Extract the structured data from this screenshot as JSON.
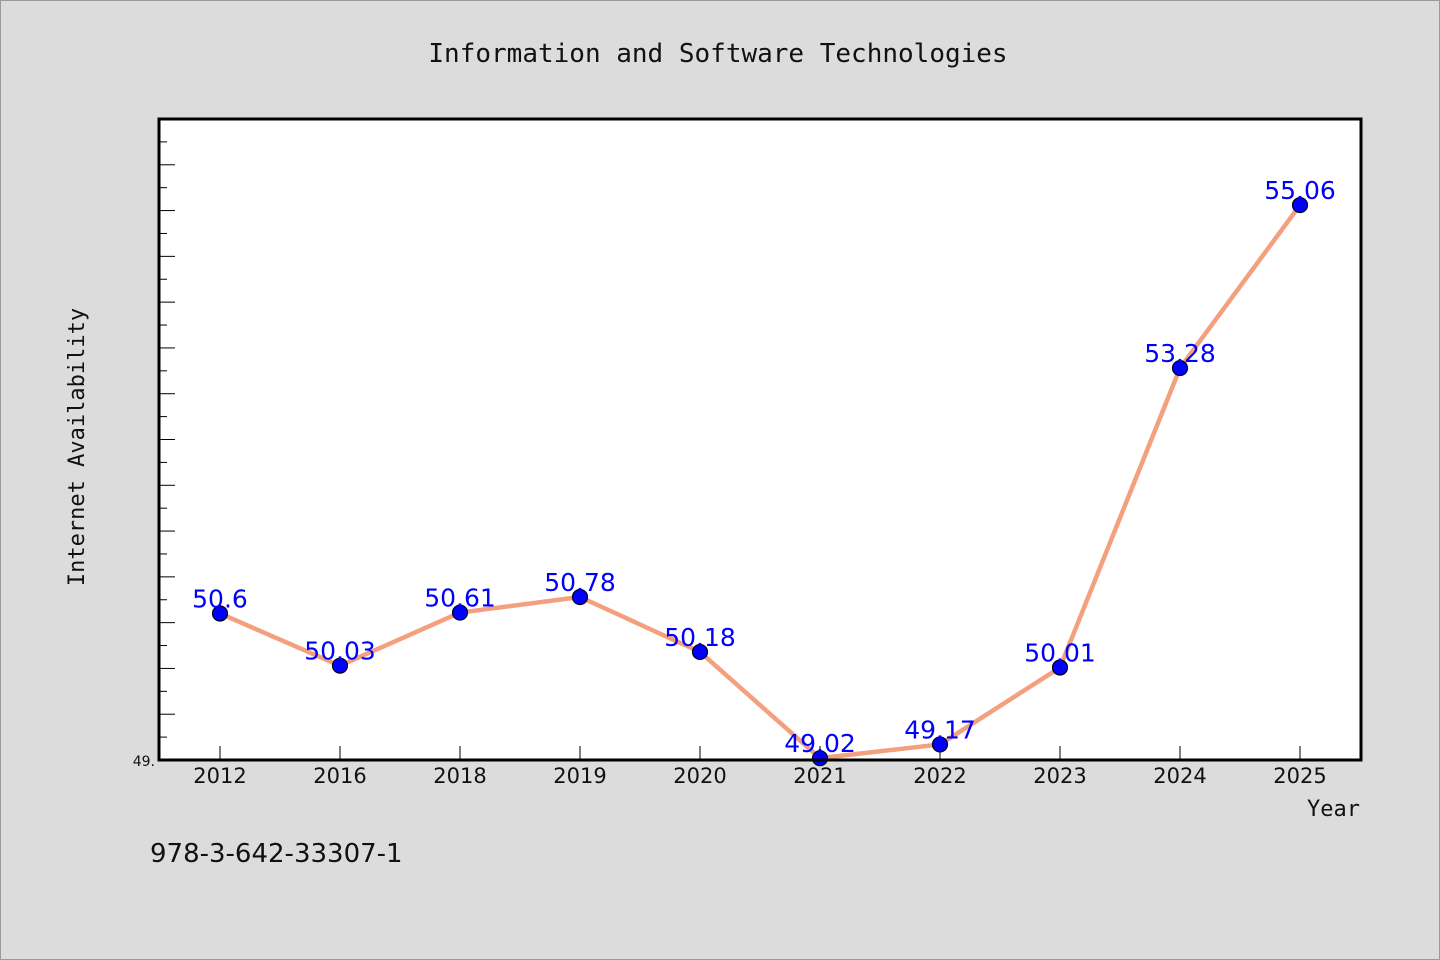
{
  "chart_data": {
    "type": "line",
    "title": "Information and Software Technologies",
    "xlabel": "Year",
    "ylabel": "Internet Availability",
    "categories": [
      "2012",
      "2016",
      "2018",
      "2019",
      "2020",
      "2021",
      "2022",
      "2023",
      "2024",
      "2025"
    ],
    "series": [
      {
        "values": [
          50.6,
          50.03,
          50.61,
          50.78,
          50.18,
          49.02,
          49.17,
          50.01,
          53.28,
          55.06
        ],
        "labels": [
          "50.6",
          "50.03",
          "50.61",
          "50.78",
          "50.18",
          "49.02",
          "49.17",
          "50.01",
          "53.28",
          "55.06"
        ]
      }
    ],
    "ylim": [
      49.0,
      56.0
    ],
    "y_tick_label": "49.",
    "grid": false,
    "colors": {
      "line": "#f4a07f",
      "marker": "#0000ff",
      "data_label": "#0000ff",
      "background": "#dcdcdc",
      "plot_background": "#ffffff"
    }
  },
  "footer": {
    "isbn": "978-3-642-33307-1"
  }
}
